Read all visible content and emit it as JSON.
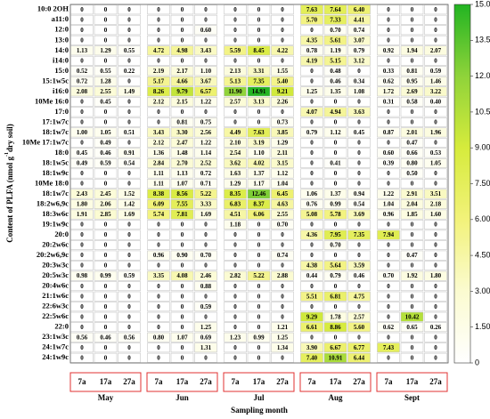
{
  "chart_data": {
    "type": "heatmap",
    "x_label": "Sampling month",
    "y_label": "Content of PLFA (nmol g",
    "y_label_sup": "-1",
    "y_label_end": "dry soil)",
    "months": [
      "May",
      "Jun",
      "Jul",
      "Aug",
      "Sept"
    ],
    "days": [
      "7a",
      "17a",
      "27a"
    ],
    "rows": [
      "10:0 2OH",
      "a11:0",
      "12:0",
      "13:0",
      "14:0",
      "i14:0",
      "15:0",
      "15:1w5c",
      "i16:0",
      "10Me 16:0",
      "17:0",
      "17:1w7c",
      "18:1w7c",
      "10Me 17:1w7c",
      "18:0",
      "18:1w5c",
      "18:1w9c",
      "10Me 18:0",
      "18:1w7c",
      "18:2w6,9c",
      "18:3w6c",
      "19:1w9c",
      "20:0",
      "20:2w6c",
      "20:2w6,9c",
      "20:3w3c",
      "20:5w3c",
      "20:4w6c",
      "21:1w6c",
      "22:6w3c",
      "22:5w6c",
      "22:0",
      "23:1w3c",
      "24:1w7c",
      "24:1w9c"
    ],
    "values": [
      [
        0,
        0,
        0,
        0,
        0,
        0,
        0,
        0,
        0,
        7.63,
        7.64,
        6.4,
        0,
        0,
        0
      ],
      [
        0,
        0,
        0,
        0,
        0,
        0,
        0,
        0,
        0,
        5.7,
        7.33,
        4.41,
        0,
        0,
        0
      ],
      [
        0,
        0,
        0,
        0,
        0,
        0.6,
        0,
        0,
        0,
        0,
        0.7,
        0.74,
        0,
        0,
        0
      ],
      [
        0,
        0,
        0,
        0,
        0,
        0,
        0,
        0,
        0,
        4.35,
        5.61,
        3.07,
        0,
        0,
        0
      ],
      [
        1.13,
        1.29,
        0.55,
        4.72,
        4.98,
        3.43,
        5.59,
        8.45,
        4.22,
        0.78,
        1.19,
        0.79,
        0.92,
        1.94,
        2.07
      ],
      [
        0,
        0,
        0,
        0,
        0,
        0,
        0,
        0,
        0,
        4.19,
        5.15,
        3.12,
        0,
        0,
        0
      ],
      [
        0.52,
        0.55,
        0.22,
        2.19,
        2.17,
        1.1,
        2.13,
        3.31,
        1.55,
        0,
        0.48,
        0,
        0.33,
        0.81,
        0.59
      ],
      [
        0.72,
        1.28,
        0,
        5.17,
        4.66,
        3.67,
        5.13,
        7.35,
        5.4,
        0,
        0.46,
        0.34,
        0.62,
        0.95,
        1.46
      ],
      [
        2.08,
        2.55,
        1.49,
        8.26,
        9.79,
        6.57,
        11.9,
        14.91,
        9.21,
        1.25,
        1.35,
        1.08,
        1.72,
        2.69,
        3.22
      ],
      [
        0,
        0.45,
        0,
        2.12,
        2.15,
        1.22,
        2.57,
        3.13,
        2.26,
        0,
        0,
        0,
        0.31,
        0.58,
        0.4
      ],
      [
        0,
        0,
        0,
        0,
        0,
        0,
        0,
        0,
        0,
        4.07,
        4.94,
        3.63,
        0,
        0,
        0
      ],
      [
        0,
        0,
        0,
        0,
        0.81,
        0.75,
        0,
        0,
        0.73,
        0,
        0,
        0,
        0,
        0,
        0
      ],
      [
        1,
        1.05,
        0.51,
        3.43,
        3.3,
        2.56,
        4.49,
        7.63,
        3.85,
        0.79,
        1.12,
        0.45,
        0.87,
        2.01,
        1.96
      ],
      [
        0,
        0.49,
        0,
        2.12,
        2.47,
        1.22,
        2.1,
        3.19,
        1.29,
        0,
        0,
        0,
        0,
        0.47,
        0
      ],
      [
        0.45,
        0.46,
        0.91,
        1.36,
        1.48,
        1.14,
        2.54,
        1.1,
        2.11,
        0,
        0,
        0,
        0.6,
        0.66,
        0.53
      ],
      [
        0.49,
        0.59,
        0.54,
        2.84,
        2.7,
        2.52,
        3.62,
        4.02,
        3.15,
        0,
        0.41,
        0,
        0.39,
        0.8,
        1.05
      ],
      [
        0,
        0,
        0,
        1.11,
        1.13,
        0.72,
        1.63,
        1.37,
        1.12,
        0,
        0,
        0,
        0,
        0.5,
        0
      ],
      [
        0,
        0,
        0,
        1.11,
        1.07,
        0.71,
        1.29,
        1.17,
        1.04,
        0,
        0,
        0,
        0,
        0,
        0
      ],
      [
        2.43,
        2.45,
        1.52,
        8.38,
        8.56,
        5.22,
        8.35,
        12.46,
        6.45,
        1.06,
        1.37,
        0.94,
        1.22,
        2.91,
        3.51
      ],
      [
        1.8,
        2.06,
        1.42,
        6.09,
        7.55,
        3.33,
        6.83,
        8.37,
        4.63,
        0.76,
        0.99,
        0.54,
        1.04,
        2.04,
        2.18
      ],
      [
        1.91,
        2.85,
        1.69,
        5.74,
        7.81,
        1.69,
        4.51,
        6.06,
        2.55,
        5.08,
        5.78,
        3.69,
        0.96,
        1.85,
        1.6
      ],
      [
        0,
        0,
        0,
        0,
        0,
        0,
        1.18,
        0,
        0.7,
        0,
        0,
        0,
        0,
        0,
        0
      ],
      [
        0,
        0,
        0,
        0,
        0,
        0,
        0,
        0,
        0,
        4.36,
        7.95,
        7.35,
        7.94,
        0,
        0
      ],
      [
        0,
        0,
        0,
        0,
        0,
        0,
        0,
        0,
        0,
        0,
        0.7,
        0,
        0,
        0,
        0
      ],
      [
        0,
        0,
        0,
        0.96,
        0.9,
        0.7,
        0,
        0,
        0.74,
        0,
        0,
        0,
        0,
        0.47,
        0
      ],
      [
        0,
        0,
        0,
        0,
        0,
        0,
        0,
        0,
        0,
        4.38,
        5.64,
        3.59,
        0,
        0,
        0
      ],
      [
        0.98,
        0.99,
        0.59,
        3.35,
        4.08,
        2.46,
        2.82,
        5.22,
        2.88,
        0.44,
        0.79,
        0.46,
        0.7,
        1.92,
        1.8
      ],
      [
        0,
        0,
        0,
        0,
        0,
        0.88,
        0,
        0,
        0,
        0,
        0,
        0,
        0,
        0,
        0
      ],
      [
        0,
        0,
        0,
        0,
        0,
        0,
        0,
        0,
        0,
        5.51,
        6.81,
        4.75,
        0,
        0,
        0
      ],
      [
        0,
        0,
        0,
        0,
        0,
        0.59,
        0,
        0,
        0,
        0,
        0,
        0,
        0,
        0,
        0
      ],
      [
        0,
        0,
        0,
        0,
        0,
        0,
        0,
        0,
        0,
        9.29,
        1.78,
        2.57,
        0,
        10.42,
        0
      ],
      [
        0,
        0,
        0,
        0,
        0,
        1.25,
        0,
        0,
        1.21,
        6.61,
        8.86,
        5.6,
        0.62,
        0.65,
        0.26
      ],
      [
        0.56,
        0.46,
        0.56,
        0.8,
        1.07,
        0.69,
        1.23,
        0.99,
        1.25,
        0,
        0,
        0,
        0,
        0,
        0
      ],
      [
        0,
        0,
        0,
        0,
        0,
        1.31,
        0,
        0,
        1.34,
        3.9,
        6.67,
        6.77,
        7.43,
        0,
        0
      ],
      [
        0,
        0,
        0,
        0,
        0,
        0,
        0,
        0,
        0,
        7.4,
        10.91,
        6.44,
        0,
        0,
        0
      ]
    ],
    "value_labels": [
      [
        "0",
        "0",
        "0",
        "0",
        "0",
        "0",
        "0",
        "0",
        "0",
        "7.63",
        "7.64",
        "6.40",
        "0",
        "0",
        "0"
      ],
      [
        "0",
        "0",
        "0",
        "0",
        "0",
        "0",
        "0",
        "0",
        "0",
        "5.70",
        "7.33",
        "4.41",
        "0",
        "0",
        "0"
      ],
      [
        "0",
        "0",
        "0",
        "0",
        "0",
        "0.60",
        "0",
        "0",
        "0",
        "0",
        "0.70",
        "0.74",
        "0",
        "0",
        "0"
      ],
      [
        "0",
        "0",
        "0",
        "0",
        "0",
        "0",
        "0",
        "0",
        "0",
        "4.35",
        "5.61",
        "3.07",
        "0",
        "0",
        "0"
      ],
      [
        "1.13",
        "1.29",
        "0.55",
        "4.72",
        "4.98",
        "3.43",
        "5.59",
        "8.45",
        "4.22",
        "0.78",
        "1.19",
        "0.79",
        "0.92",
        "1.94",
        "2.07"
      ],
      [
        "0",
        "0",
        "0",
        "0",
        "0",
        "0",
        "0",
        "0",
        "0",
        "4.19",
        "5.15",
        "3.12",
        "0",
        "0",
        "0"
      ],
      [
        "0.52",
        "0.55",
        "0.22",
        "2.19",
        "2.17",
        "1.10",
        "2.13",
        "3.31",
        "1.55",
        "0",
        "0.48",
        "0",
        "0.33",
        "0.81",
        "0.59"
      ],
      [
        "0.72",
        "1.28",
        "0",
        "5.17",
        "4.66",
        "3.67",
        "5.13",
        "7.35",
        "5.40",
        "0",
        "0.46",
        "0.34",
        "0.62",
        "0.95",
        "1.46"
      ],
      [
        "2.08",
        "2.55",
        "1.49",
        "8.26",
        "9.79",
        "6.57",
        "11.90",
        "14.91",
        "9.21",
        "1.25",
        "1.35",
        "1.08",
        "1.72",
        "2.69",
        "3.22"
      ],
      [
        "0",
        "0.45",
        "0",
        "2.12",
        "2.15",
        "1.22",
        "2.57",
        "3.13",
        "2.26",
        "0",
        "0",
        "0",
        "0.31",
        "0.58",
        "0.40"
      ],
      [
        "0",
        "0",
        "0",
        "0",
        "0",
        "0",
        "0",
        "0",
        "0",
        "4.07",
        "4.94",
        "3.63",
        "0",
        "0",
        "0"
      ],
      [
        "0",
        "0",
        "0",
        "0",
        "0.81",
        "0.75",
        "0",
        "0",
        "0.73",
        "0",
        "0",
        "0",
        "0",
        "0",
        "0"
      ],
      [
        "1.00",
        "1.05",
        "0.51",
        "3.43",
        "3.30",
        "2.56",
        "4.49",
        "7.63",
        "3.85",
        "0.79",
        "1.12",
        "0.45",
        "0.87",
        "2.01",
        "1.96"
      ],
      [
        "0",
        "0.49",
        "0",
        "2.12",
        "2.47",
        "1.22",
        "2.10",
        "3.19",
        "1.29",
        "0",
        "0",
        "0",
        "0",
        "0.47",
        "0"
      ],
      [
        "0.45",
        "0.46",
        "0.91",
        "1.36",
        "1.48",
        "1.14",
        "2.54",
        "1.10",
        "2.11",
        "0",
        "0",
        "0",
        "0.60",
        "0.66",
        "0.53"
      ],
      [
        "0.49",
        "0.59",
        "0.54",
        "2.84",
        "2.70",
        "2.52",
        "3.62",
        "4.02",
        "3.15",
        "0",
        "0.41",
        "0",
        "0.39",
        "0.80",
        "1.05"
      ],
      [
        "0",
        "0",
        "0",
        "1.11",
        "1.13",
        "0.72",
        "1.63",
        "1.37",
        "1.12",
        "0",
        "0",
        "0",
        "0",
        "0.50",
        "0"
      ],
      [
        "0",
        "0",
        "0",
        "1.11",
        "1.07",
        "0.71",
        "1.29",
        "1.17",
        "1.04",
        "0",
        "0",
        "0",
        "0",
        "0",
        "0"
      ],
      [
        "2.43",
        "2.45",
        "1.52",
        "8.38",
        "8.56",
        "5.22",
        "8.35",
        "12.46",
        "6.45",
        "1.06",
        "1.37",
        "0.94",
        "1.22",
        "2.91",
        "3.51"
      ],
      [
        "1.80",
        "2.06",
        "1.42",
        "6.09",
        "7.55",
        "3.33",
        "6.83",
        "8.37",
        "4.63",
        "0.76",
        "0.99",
        "0.54",
        "1.04",
        "2.04",
        "2.18"
      ],
      [
        "1.91",
        "2.85",
        "1.69",
        "5.74",
        "7.81",
        "1.69",
        "4.51",
        "6.06",
        "2.55",
        "5.08",
        "5.78",
        "3.69",
        "0.96",
        "1.85",
        "1.60"
      ],
      [
        "0",
        "0",
        "0",
        "0",
        "0",
        "0",
        "1.18",
        "0",
        "0.70",
        "0",
        "0",
        "0",
        "0",
        "0",
        "0"
      ],
      [
        "0",
        "0",
        "0",
        "0",
        "0",
        "0",
        "0",
        "0",
        "0",
        "4.36",
        "7.95",
        "7.35",
        "7.94",
        "0",
        "0"
      ],
      [
        "0",
        "0",
        "0",
        "0",
        "0",
        "0",
        "0",
        "0",
        "0",
        "0",
        "0.70",
        "0",
        "0",
        "0",
        "0"
      ],
      [
        "0",
        "0",
        "0",
        "0.96",
        "0.90",
        "0.70",
        "0",
        "0",
        "0.74",
        "0",
        "0",
        "0",
        "0",
        "0.47",
        "0"
      ],
      [
        "0",
        "0",
        "0",
        "0",
        "0",
        "0",
        "0",
        "0",
        "0",
        "4.38",
        "5.64",
        "3.59",
        "0",
        "0",
        "0"
      ],
      [
        "0.98",
        "0.99",
        "0.59",
        "3.35",
        "4.08",
        "2.46",
        "2.82",
        "5.22",
        "2.88",
        "0.44",
        "0.79",
        "0.46",
        "0.70",
        "1.92",
        "1.80"
      ],
      [
        "0",
        "0",
        "0",
        "0",
        "0",
        "0.88",
        "0",
        "0",
        "0",
        "0",
        "0",
        "0",
        "0",
        "0",
        "0"
      ],
      [
        "0",
        "0",
        "0",
        "0",
        "0",
        "0",
        "0",
        "0",
        "0",
        "5.51",
        "6.81",
        "4.75",
        "0",
        "0",
        "0"
      ],
      [
        "0",
        "0",
        "0",
        "0",
        "0",
        "0.59",
        "0",
        "0",
        "0",
        "0",
        "0",
        "0",
        "0",
        "0",
        "0"
      ],
      [
        "0",
        "0",
        "0",
        "0",
        "0",
        "0",
        "0",
        "0",
        "0",
        "9.29",
        "1.78",
        "2.57",
        "0",
        "10.42",
        "0"
      ],
      [
        "0",
        "0",
        "0",
        "0",
        "0",
        "1.25",
        "0",
        "0",
        "1.21",
        "6.61",
        "8.86",
        "5.60",
        "0.62",
        "0.65",
        "0.26"
      ],
      [
        "0.56",
        "0.46",
        "0.56",
        "0.80",
        "1.07",
        "0.69",
        "1.23",
        "0.99",
        "1.25",
        "0",
        "0",
        "0",
        "0",
        "0",
        "0"
      ],
      [
        "0",
        "0",
        "0",
        "0",
        "0",
        "1.31",
        "0",
        "0",
        "1.34",
        "3.90",
        "6.67",
        "6.77",
        "7.43",
        "0",
        "0"
      ],
      [
        "0",
        "0",
        "0",
        "0",
        "0",
        "0",
        "0",
        "0",
        "0",
        "7.40",
        "10.91",
        "6.44",
        "0",
        "0",
        "0"
      ]
    ],
    "colorscale": [
      "#ffffff",
      "#fbfbd0",
      "#f2f27a",
      "#d6eb3c",
      "#8fd33a",
      "#22b422"
    ],
    "clim": [
      0,
      15
    ],
    "cticks": [
      0,
      {
        "value": 1.5,
        "label": "1.500"
      },
      {
        "value": 3,
        "label": "3.000"
      },
      {
        "value": 4.5,
        "label": "4.500"
      },
      {
        "value": 6,
        "label": "6.000"
      },
      {
        "value": 7.5,
        "label": "7.500"
      },
      {
        "value": 9,
        "label": "9.000"
      },
      {
        "value": 10.5,
        "label": "10.50"
      },
      {
        "value": 12,
        "label": "12.00"
      },
      {
        "value": 13.5,
        "label": "13.50"
      },
      {
        "value": 15,
        "label": "15.00"
      }
    ]
  }
}
